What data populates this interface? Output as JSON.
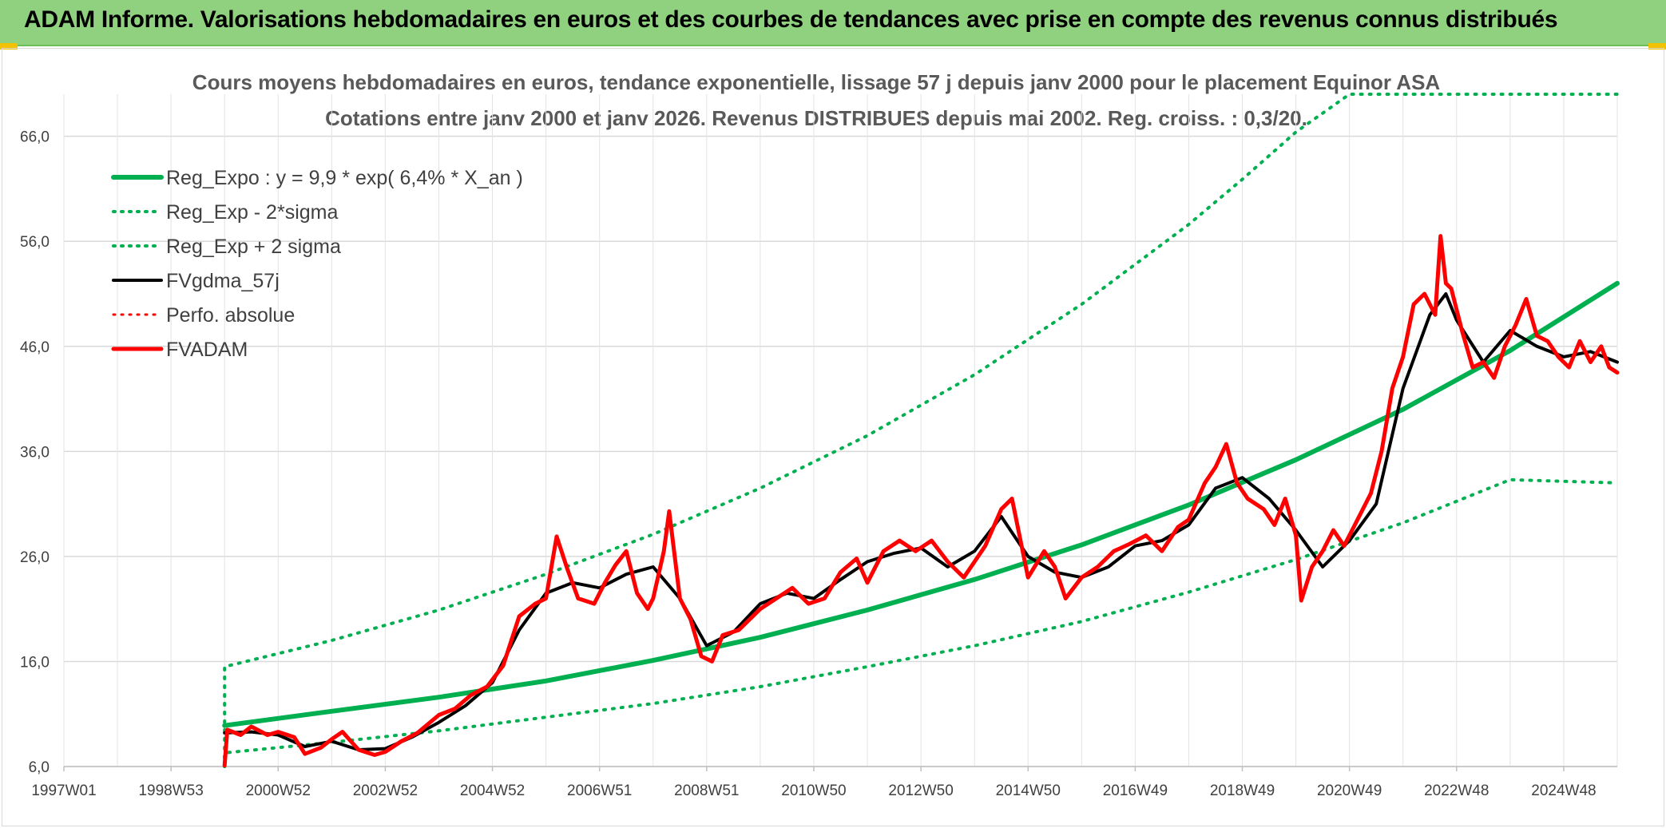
{
  "header": {
    "title": "ADAM Informe. Valorisations hebdomadaires en euros et des courbes de tendances avec prise en compte des revenus connus distribués"
  },
  "chart_data": {
    "type": "line",
    "title_line1": "Cours moyens hebdomadaires en euros, tendance exponentielle, lissage 57 j depuis janv 2000 pour le placement Equinor ASA",
    "title_line2": "Cotations entre janv 2000 et janv 2026. Revenus DISTRIBUES depuis mai 2002. Reg. croiss. : 0,3/20.",
    "x_range": [
      1997.0,
      2026.0
    ],
    "y_range": [
      6.0,
      70.0
    ],
    "y_ticks": [
      {
        "value": 6,
        "label": "6,0"
      },
      {
        "value": 16,
        "label": "16,0"
      },
      {
        "value": 26,
        "label": "26,0"
      },
      {
        "value": 36,
        "label": "36,0"
      },
      {
        "value": 46,
        "label": "46,0"
      },
      {
        "value": 56,
        "label": "56,0"
      },
      {
        "value": 66,
        "label": "66,0"
      }
    ],
    "x_ticks": [
      {
        "value": 1997.0,
        "label": "1997W01"
      },
      {
        "value": 1999.0,
        "label": "1998W53"
      },
      {
        "value": 2001.0,
        "label": "2000W52"
      },
      {
        "value": 2003.0,
        "label": "2002W52"
      },
      {
        "value": 2005.0,
        "label": "2004W52"
      },
      {
        "value": 2007.0,
        "label": "2006W51"
      },
      {
        "value": 2009.0,
        "label": "2008W51"
      },
      {
        "value": 2011.0,
        "label": "2010W50"
      },
      {
        "value": 2013.0,
        "label": "2012W50"
      },
      {
        "value": 2015.0,
        "label": "2014W50"
      },
      {
        "value": 2017.0,
        "label": "2016W49"
      },
      {
        "value": 2019.0,
        "label": "2018W49"
      },
      {
        "value": 2021.0,
        "label": "2020W49"
      },
      {
        "value": 2023.0,
        "label": "2022W48"
      },
      {
        "value": 2025.0,
        "label": "2024W48"
      }
    ],
    "legend": [
      {
        "label": "Reg_Expo : y = 9,9 * exp( 6,4% *  X_an )",
        "color": "#00b050",
        "style": "solid",
        "width": 6
      },
      {
        "label": "Reg_Exp - 2*sigma",
        "color": "#00b050",
        "style": "dotted",
        "width": 4
      },
      {
        "label": "Reg_Exp + 2 sigma",
        "color": "#00b050",
        "style": "dotted",
        "width": 4
      },
      {
        "label": "FVgdma_57j",
        "color": "#000000",
        "style": "solid",
        "width": 4
      },
      {
        "label": "Perfo. absolue",
        "color": "#ff0000",
        "style": "dotted",
        "width": 3
      },
      {
        "label": "FVADAM",
        "color": "#ff0000",
        "style": "solid",
        "width": 5
      }
    ],
    "series": [
      {
        "name": "Reg_Expo",
        "color": "#00b050",
        "style": "solid",
        "points": [
          [
            2000.0,
            9.9
          ],
          [
            2002.0,
            11.26
          ],
          [
            2004.0,
            12.6
          ],
          [
            2006.0,
            14.15
          ],
          [
            2008.0,
            16.1
          ],
          [
            2010.0,
            18.3
          ],
          [
            2012.0,
            20.9
          ],
          [
            2014.0,
            23.8
          ],
          [
            2016.0,
            27.1
          ],
          [
            2018.0,
            30.9
          ],
          [
            2020.0,
            35.2
          ],
          [
            2022.0,
            40.0
          ],
          [
            2024.0,
            45.6
          ],
          [
            2026.0,
            52.0
          ]
        ]
      },
      {
        "name": "Reg_Exp - 2*sigma",
        "color": "#00b050",
        "style": "dotted",
        "points": [
          [
            2000.0,
            6.0
          ],
          [
            2000.0,
            7.3
          ],
          [
            2002.0,
            8.3
          ],
          [
            2004.0,
            9.4
          ],
          [
            2006.0,
            10.7
          ],
          [
            2008.0,
            12.0
          ],
          [
            2010.0,
            13.6
          ],
          [
            2012.0,
            15.5
          ],
          [
            2014.0,
            17.5
          ],
          [
            2016.0,
            19.8
          ],
          [
            2018.0,
            22.6
          ],
          [
            2020.0,
            25.7
          ],
          [
            2022.0,
            29.2
          ],
          [
            2024.0,
            33.3
          ],
          [
            2026.0,
            33.0
          ]
        ]
      },
      {
        "name": "Reg_Exp + 2 sigma",
        "color": "#00b050",
        "style": "dotted",
        "points": [
          [
            2000.0,
            6.0
          ],
          [
            2000.0,
            15.5
          ],
          [
            2002.0,
            18.0
          ],
          [
            2004.0,
            20.9
          ],
          [
            2006.0,
            24.3
          ],
          [
            2008.0,
            28.1
          ],
          [
            2010.0,
            32.5
          ],
          [
            2012.0,
            37.5
          ],
          [
            2014.0,
            43.3
          ],
          [
            2016.0,
            50.0
          ],
          [
            2018.0,
            57.6
          ],
          [
            2019.0,
            61.9
          ],
          [
            2020.0,
            66.4
          ],
          [
            2021.0,
            70.0
          ],
          [
            2026.0,
            70.0
          ]
        ]
      },
      {
        "name": "FVgdma_57j",
        "color": "#000000",
        "style": "solid",
        "points": [
          [
            2000.0,
            9.2
          ],
          [
            2000.5,
            9.3
          ],
          [
            2001.0,
            9.0
          ],
          [
            2001.5,
            7.9
          ],
          [
            2002.0,
            8.4
          ],
          [
            2002.5,
            7.6
          ],
          [
            2003.0,
            7.7
          ],
          [
            2003.5,
            8.8
          ],
          [
            2004.0,
            10.2
          ],
          [
            2004.5,
            11.8
          ],
          [
            2005.0,
            14.0
          ],
          [
            2005.5,
            19.0
          ],
          [
            2006.0,
            22.5
          ],
          [
            2006.5,
            23.5
          ],
          [
            2007.0,
            23.0
          ],
          [
            2007.5,
            24.3
          ],
          [
            2008.0,
            25.0
          ],
          [
            2008.5,
            22.0
          ],
          [
            2009.0,
            17.5
          ],
          [
            2009.5,
            18.8
          ],
          [
            2010.0,
            21.5
          ],
          [
            2010.5,
            22.5
          ],
          [
            2011.0,
            22.0
          ],
          [
            2011.5,
            23.8
          ],
          [
            2012.0,
            25.5
          ],
          [
            2012.5,
            26.3
          ],
          [
            2013.0,
            26.8
          ],
          [
            2013.5,
            25.0
          ],
          [
            2014.0,
            26.5
          ],
          [
            2014.5,
            29.8
          ],
          [
            2015.0,
            26.0
          ],
          [
            2015.5,
            24.5
          ],
          [
            2016.0,
            24.0
          ],
          [
            2016.5,
            25.0
          ],
          [
            2017.0,
            27.0
          ],
          [
            2017.5,
            27.5
          ],
          [
            2018.0,
            29.0
          ],
          [
            2018.5,
            32.5
          ],
          [
            2019.0,
            33.5
          ],
          [
            2019.5,
            31.5
          ],
          [
            2020.0,
            28.5
          ],
          [
            2020.5,
            25.0
          ],
          [
            2021.0,
            27.5
          ],
          [
            2021.5,
            31.0
          ],
          [
            2022.0,
            42.0
          ],
          [
            2022.5,
            49.0
          ],
          [
            2022.8,
            51.0
          ],
          [
            2023.0,
            48.5
          ],
          [
            2023.5,
            44.5
          ],
          [
            2024.0,
            47.5
          ],
          [
            2024.5,
            46.0
          ],
          [
            2025.0,
            45.0
          ],
          [
            2025.5,
            45.5
          ],
          [
            2026.0,
            44.5
          ]
        ]
      },
      {
        "name": "FVADAM",
        "color": "#ff0000",
        "style": "solid",
        "points": [
          [
            2000.0,
            6.1
          ],
          [
            2000.05,
            9.5
          ],
          [
            2000.3,
            9.0
          ],
          [
            2000.5,
            9.8
          ],
          [
            2000.8,
            9.0
          ],
          [
            2001.0,
            9.3
          ],
          [
            2001.3,
            8.8
          ],
          [
            2001.5,
            7.2
          ],
          [
            2001.8,
            7.8
          ],
          [
            2002.0,
            8.6
          ],
          [
            2002.2,
            9.3
          ],
          [
            2002.5,
            7.6
          ],
          [
            2002.8,
            7.1
          ],
          [
            2003.0,
            7.4
          ],
          [
            2003.3,
            8.4
          ],
          [
            2003.6,
            9.2
          ],
          [
            2004.0,
            10.9
          ],
          [
            2004.3,
            11.5
          ],
          [
            2004.6,
            12.8
          ],
          [
            2004.9,
            13.6
          ],
          [
            2005.2,
            15.6
          ],
          [
            2005.5,
            20.3
          ],
          [
            2005.8,
            21.5
          ],
          [
            2006.0,
            22.0
          ],
          [
            2006.2,
            27.9
          ],
          [
            2006.4,
            24.8
          ],
          [
            2006.6,
            22.0
          ],
          [
            2006.9,
            21.5
          ],
          [
            2007.1,
            23.5
          ],
          [
            2007.3,
            25.2
          ],
          [
            2007.5,
            26.5
          ],
          [
            2007.7,
            22.5
          ],
          [
            2007.9,
            21.0
          ],
          [
            2008.0,
            22.0
          ],
          [
            2008.2,
            26.5
          ],
          [
            2008.3,
            30.3
          ],
          [
            2008.5,
            22.0
          ],
          [
            2008.7,
            20.0
          ],
          [
            2008.9,
            16.5
          ],
          [
            2009.1,
            16.0
          ],
          [
            2009.3,
            18.5
          ],
          [
            2009.6,
            19.0
          ],
          [
            2010.0,
            21.0
          ],
          [
            2010.3,
            22.0
          ],
          [
            2010.6,
            23.0
          ],
          [
            2010.9,
            21.5
          ],
          [
            2011.2,
            22.0
          ],
          [
            2011.5,
            24.5
          ],
          [
            2011.8,
            25.8
          ],
          [
            2012.0,
            23.5
          ],
          [
            2012.3,
            26.5
          ],
          [
            2012.6,
            27.5
          ],
          [
            2012.9,
            26.5
          ],
          [
            2013.2,
            27.5
          ],
          [
            2013.5,
            25.5
          ],
          [
            2013.8,
            24.0
          ],
          [
            2014.0,
            25.5
          ],
          [
            2014.2,
            27.0
          ],
          [
            2014.5,
            30.5
          ],
          [
            2014.7,
            31.5
          ],
          [
            2015.0,
            24.0
          ],
          [
            2015.3,
            26.5
          ],
          [
            2015.5,
            25.0
          ],
          [
            2015.7,
            22.0
          ],
          [
            2016.0,
            24.0
          ],
          [
            2016.3,
            25.0
          ],
          [
            2016.6,
            26.5
          ],
          [
            2016.9,
            27.2
          ],
          [
            2017.2,
            28.0
          ],
          [
            2017.5,
            26.5
          ],
          [
            2017.8,
            28.8
          ],
          [
            2018.0,
            29.5
          ],
          [
            2018.3,
            33.0
          ],
          [
            2018.5,
            34.5
          ],
          [
            2018.7,
            36.7
          ],
          [
            2018.9,
            33.0
          ],
          [
            2019.1,
            31.5
          ],
          [
            2019.4,
            30.5
          ],
          [
            2019.6,
            29.0
          ],
          [
            2019.8,
            31.5
          ],
          [
            2020.0,
            28.0
          ],
          [
            2020.1,
            21.8
          ],
          [
            2020.3,
            25.0
          ],
          [
            2020.5,
            26.5
          ],
          [
            2020.7,
            28.5
          ],
          [
            2020.9,
            27.0
          ],
          [
            2021.1,
            29.0
          ],
          [
            2021.4,
            32.0
          ],
          [
            2021.6,
            36.0
          ],
          [
            2021.8,
            42.0
          ],
          [
            2022.0,
            45.0
          ],
          [
            2022.2,
            50.0
          ],
          [
            2022.4,
            51.0
          ],
          [
            2022.6,
            49.0
          ],
          [
            2022.7,
            56.5
          ],
          [
            2022.8,
            52.0
          ],
          [
            2022.9,
            51.5
          ],
          [
            2023.1,
            47.5
          ],
          [
            2023.3,
            44.0
          ],
          [
            2023.5,
            44.5
          ],
          [
            2023.7,
            43.0
          ],
          [
            2023.9,
            46.0
          ],
          [
            2024.1,
            48.0
          ],
          [
            2024.3,
            50.5
          ],
          [
            2024.5,
            47.0
          ],
          [
            2024.7,
            46.5
          ],
          [
            2024.9,
            45.0
          ],
          [
            2025.1,
            44.0
          ],
          [
            2025.3,
            46.5
          ],
          [
            2025.5,
            44.5
          ],
          [
            2025.7,
            46.0
          ],
          [
            2025.85,
            44.0
          ],
          [
            2026.0,
            43.5
          ]
        ]
      }
    ]
  }
}
